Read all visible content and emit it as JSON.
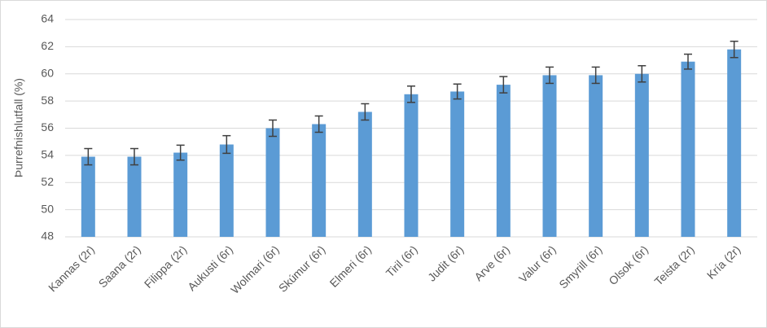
{
  "chart_data": {
    "type": "bar",
    "y_label": "Þurrefnishlutfall (%)",
    "categories": [
      "Kannas (2r)",
      "Saana (2r)",
      "Filippa (2r)",
      "Aukusti (6r)",
      "Wolmari (6r)",
      "Skúmur (6r)",
      "Elmeri (6r)",
      "Tiril  (6r)",
      "Judit  (6r)",
      "Arve (6r)",
      "Valur (6r)",
      "Smyrill (6r)",
      "Olsok (6r)",
      "Teista (2r)",
      "Kría (2r)"
    ],
    "values": [
      53.9,
      53.9,
      54.2,
      54.8,
      56.0,
      56.3,
      57.2,
      58.5,
      58.7,
      59.2,
      59.9,
      59.9,
      60.0,
      60.9,
      61.8
    ],
    "errors": [
      0.6,
      0.6,
      0.55,
      0.65,
      0.6,
      0.6,
      0.6,
      0.6,
      0.55,
      0.6,
      0.6,
      0.6,
      0.6,
      0.55,
      0.6
    ],
    "color": "#5b9bd5",
    "error_color": "#404040",
    "ylim": [
      48,
      64
    ],
    "yticks": [
      48,
      50,
      52,
      54,
      56,
      58,
      60,
      62,
      64
    ],
    "grid": true
  }
}
